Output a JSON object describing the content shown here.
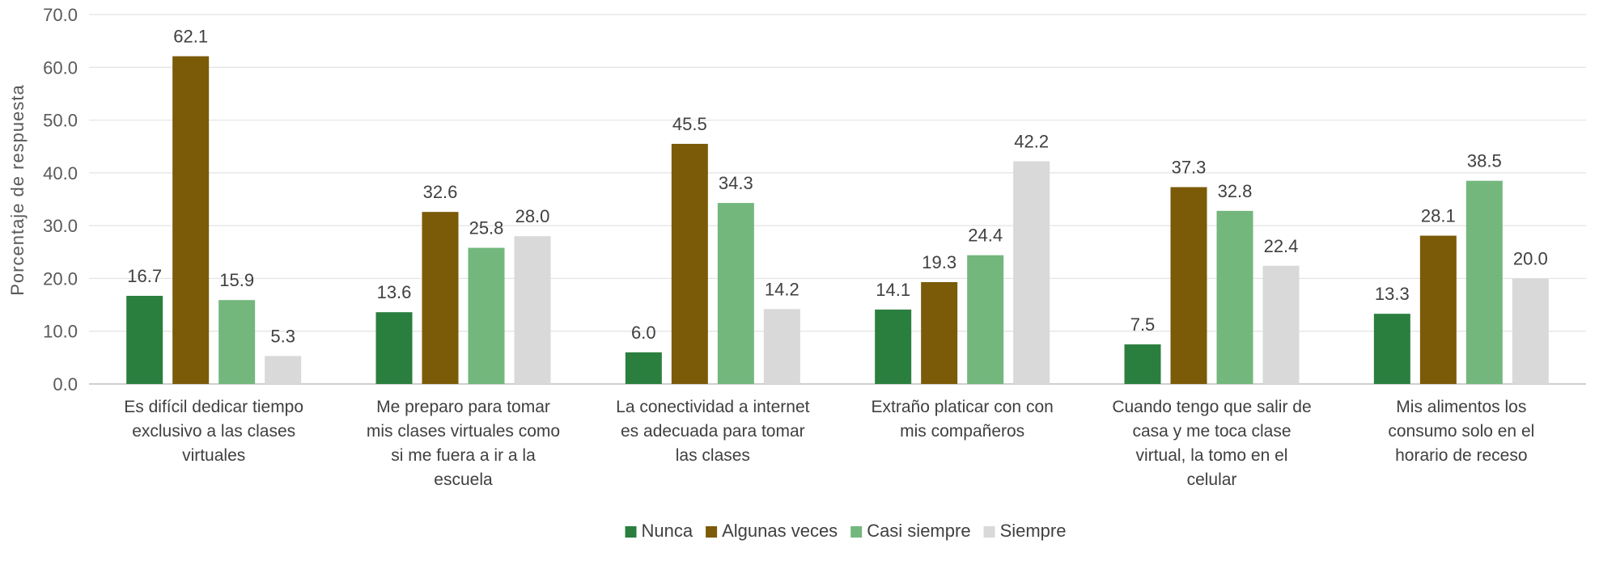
{
  "chart_data": {
    "type": "bar",
    "title": "",
    "xlabel": "",
    "ylabel": "Porcentaje de respuesta",
    "ylim": [
      0,
      70
    ],
    "yticks": [
      "0.0",
      "10.0",
      "20.0",
      "30.0",
      "40.0",
      "50.0",
      "60.0",
      "70.0"
    ],
    "grid": true,
    "legend_position": "bottom",
    "categories": [
      [
        "Es difícil dedicar tiempo",
        "exclusivo a las clases",
        "virtuales"
      ],
      [
        "Me preparo para tomar",
        "mis clases virtuales como",
        "si me fuera a ir a la",
        "escuela"
      ],
      [
        "La conectividad a internet",
        "es adecuada para tomar",
        "las clases"
      ],
      [
        "Extraño platicar con con",
        "mis compañeros"
      ],
      [
        "Cuando tengo que salir de",
        "casa y me toca clase",
        "virtual, la tomo en el",
        "celular"
      ],
      [
        "Mis alimentos los",
        "consumo solo en el",
        "horario de receso"
      ]
    ],
    "series": [
      {
        "name": "Nunca",
        "color": "#2a7f3e",
        "values": [
          16.7,
          13.6,
          6.0,
          14.1,
          7.5,
          13.3
        ],
        "labels": [
          "16.7",
          "13.6",
          "6.0",
          "14.1",
          "7.5",
          "13.3"
        ]
      },
      {
        "name": "Algunas veces",
        "color": "#7b5a08",
        "values": [
          62.1,
          32.6,
          45.5,
          19.3,
          37.3,
          28.1
        ],
        "labels": [
          "62.1",
          "32.6",
          "45.5",
          "19.3",
          "37.3",
          "28.1"
        ]
      },
      {
        "name": "Casi siempre",
        "color": "#73b77d",
        "values": [
          15.9,
          25.8,
          34.3,
          24.4,
          32.8,
          38.5
        ],
        "labels": [
          "15.9",
          "25.8",
          "34.3",
          "24.4",
          "32.8",
          "38.5"
        ]
      },
      {
        "name": "Siempre",
        "color": "#d9d9d9",
        "values": [
          5.3,
          28.0,
          14.2,
          42.2,
          22.4,
          20.0
        ],
        "labels": [
          "5.3",
          "28.0",
          "14.2",
          "42.2",
          "22.4",
          "20.0"
        ]
      }
    ]
  }
}
